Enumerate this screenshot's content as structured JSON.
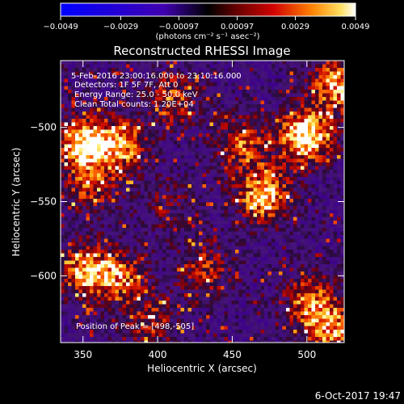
{
  "chart_data": {
    "type": "heatmap",
    "title": "Reconstructed RHESSI Image",
    "xlabel": "Heliocentric X (arcsec)",
    "ylabel": "Heliocentric Y (arcsec)",
    "xlim": [
      335,
      525
    ],
    "ylim": [
      -645,
      -455
    ],
    "x_ticks": [
      350,
      400,
      450,
      500
    ],
    "x_tick_labels": [
      "350",
      "400",
      "450",
      "500"
    ],
    "y_ticks": [
      -500,
      -550,
      -600
    ],
    "y_tick_labels": [
      "−500",
      "−550",
      "−600"
    ],
    "colorbar": {
      "min": -0.0049,
      "max": 0.0049,
      "ticks": [
        -0.0049,
        -0.0029,
        -0.00097,
        0.00097,
        0.0029,
        0.0049
      ],
      "tick_labels": [
        "−0.0049",
        "−0.0029",
        "−0.00097",
        "0.00097",
        "0.0029",
        "0.0049"
      ],
      "unit_label": "(photons cm⁻² s⁻¹ asec⁻²)"
    },
    "annotations": {
      "time_range": "5-Feb-2016 23:00:16.000 to 23:10:16.000",
      "detectors": "Detectors: 1F 5F 7F, Att 0",
      "energy_range": "Energy Range: 25.0 - 50.0 keV",
      "clean": "Clean    Total counts: 1.20E+04",
      "peak": "Position of Peak = [498,-505]"
    },
    "peak_position": [
      498,
      -505
    ],
    "bright_regions": [
      {
        "x": 348,
        "y": -510,
        "intensity": 0.9
      },
      {
        "x": 375,
        "y": -510,
        "intensity": 0.7
      },
      {
        "x": 410,
        "y": -480,
        "intensity": 0.55
      },
      {
        "x": 455,
        "y": -510,
        "intensity": 0.6
      },
      {
        "x": 498,
        "y": -505,
        "intensity": 1.0
      },
      {
        "x": 520,
        "y": -470,
        "intensity": 0.8
      },
      {
        "x": 470,
        "y": -545,
        "intensity": 0.85
      },
      {
        "x": 355,
        "y": -540,
        "intensity": 0.5
      },
      {
        "x": 350,
        "y": -595,
        "intensity": 0.75
      },
      {
        "x": 375,
        "y": -600,
        "intensity": 0.6
      },
      {
        "x": 430,
        "y": -595,
        "intensity": 0.5
      },
      {
        "x": 500,
        "y": -615,
        "intensity": 0.6
      },
      {
        "x": 395,
        "y": -630,
        "intensity": 0.45
      },
      {
        "x": 515,
        "y": -635,
        "intensity": 0.7
      },
      {
        "x": 405,
        "y": -550,
        "intensity": 0.3
      }
    ],
    "grid": false
  },
  "footer": {
    "date": "6-Oct-2017 19:47"
  }
}
